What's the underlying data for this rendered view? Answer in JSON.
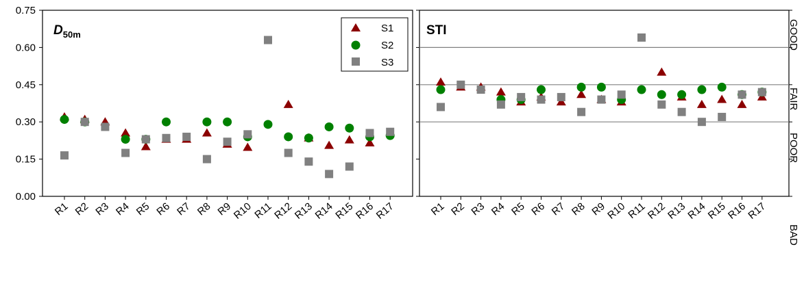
{
  "chart_data": [
    {
      "type": "scatter",
      "panel_title": "D",
      "panel_title_subscript": "50m",
      "categories": [
        "R1",
        "R2",
        "R3",
        "R4",
        "R5",
        "R6",
        "R7",
        "R8",
        "R9",
        "R10",
        "R11",
        "R12",
        "R13",
        "R14",
        "R15",
        "R16",
        "R17"
      ],
      "ylim": [
        0,
        0.75
      ],
      "yticks": [
        "0.00",
        "0.15",
        "0.30",
        "0.45",
        "0.60",
        "0.75"
      ],
      "legend": {
        "placement": "top-right",
        "entries": [
          "S1",
          "S2",
          "S3"
        ]
      },
      "series": [
        {
          "name": "S1",
          "marker": "triangle",
          "color": "#8b0000",
          "values": [
            0.32,
            0.31,
            0.3,
            0.255,
            0.2,
            0.23,
            0.23,
            0.255,
            0.21,
            0.197,
            null,
            0.37,
            0.235,
            0.205,
            0.227,
            0.215,
            null
          ]
        },
        {
          "name": "S2",
          "marker": "circle",
          "color": "#008000",
          "values": [
            0.31,
            0.3,
            null,
            0.23,
            0.23,
            0.3,
            null,
            0.3,
            0.3,
            0.24,
            0.29,
            0.24,
            0.235,
            0.28,
            0.275,
            0.24,
            0.245
          ]
        },
        {
          "name": "S3",
          "marker": "square",
          "color": "#808080",
          "values": [
            0.165,
            0.3,
            0.28,
            0.175,
            0.23,
            0.235,
            0.24,
            0.15,
            0.22,
            0.25,
            0.63,
            0.175,
            0.14,
            0.09,
            0.12,
            0.255,
            0.26
          ]
        }
      ]
    },
    {
      "type": "scatter",
      "panel_title": "STI",
      "categories": [
        "R1",
        "R2",
        "R3",
        "R4",
        "R5",
        "R6",
        "R7",
        "R8",
        "R9",
        "R10",
        "R11",
        "R12",
        "R13",
        "R14",
        "R15",
        "R16",
        "R17"
      ],
      "ylim": [
        0,
        0.75
      ],
      "reference_lines": [
        0.3,
        0.45,
        0.6
      ],
      "right_labels": [
        "GOOD",
        "FAIR",
        "POOR",
        "BAD"
      ],
      "series": [
        {
          "name": "S1",
          "marker": "triangle",
          "color": "#8b0000",
          "values": [
            0.46,
            0.44,
            0.44,
            0.42,
            0.38,
            0.4,
            0.38,
            0.41,
            0.39,
            0.38,
            null,
            0.5,
            0.4,
            0.37,
            0.39,
            0.37,
            0.4
          ]
        },
        {
          "name": "S2",
          "marker": "circle",
          "color": "#008000",
          "values": [
            0.43,
            null,
            null,
            0.39,
            0.39,
            0.43,
            null,
            0.44,
            0.44,
            0.39,
            0.43,
            0.41,
            0.41,
            0.43,
            0.44,
            0.41,
            0.42
          ]
        },
        {
          "name": "S3",
          "marker": "square",
          "color": "#808080",
          "values": [
            0.36,
            0.45,
            0.43,
            0.37,
            0.4,
            0.39,
            0.4,
            0.34,
            0.39,
            0.41,
            0.64,
            0.37,
            0.34,
            0.3,
            0.32,
            0.41,
            0.42
          ]
        }
      ]
    }
  ]
}
